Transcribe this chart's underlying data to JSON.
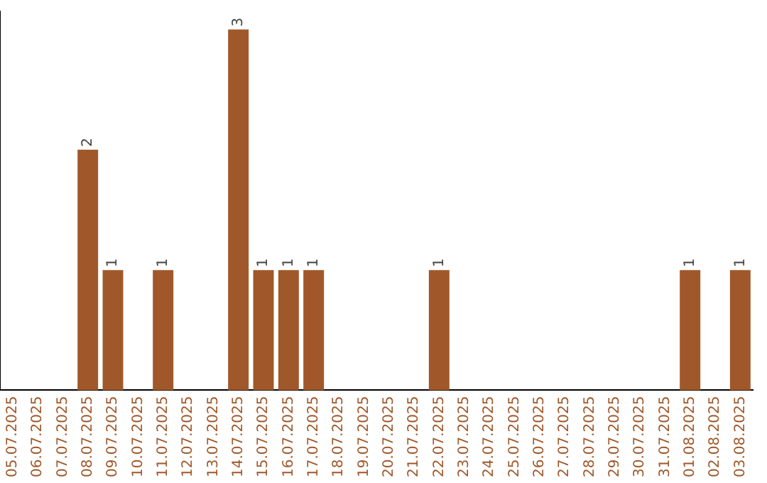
{
  "chart_data": {
    "type": "bar",
    "categories": [
      "05.07.2025",
      "06.07.2025",
      "07.07.2025",
      "08.07.2025",
      "09.07.2025",
      "10.07.2025",
      "11.07.2025",
      "12.07.2025",
      "13.07.2025",
      "14.07.2025",
      "15.07.2025",
      "16.07.2025",
      "17.07.2025",
      "18.07.2025",
      "19.07.2025",
      "20.07.2025",
      "21.07.2025",
      "22.07.2025",
      "23.07.2025",
      "24.07.2025",
      "25.07.2025",
      "26.07.2025",
      "27.07.2025",
      "28.07.2025",
      "29.07.2025",
      "30.07.2025",
      "31.07.2025",
      "01.08.2025",
      "02.08.2025",
      "03.08.2025"
    ],
    "values": [
      0,
      0,
      0,
      2,
      1,
      0,
      1,
      0,
      0,
      3,
      1,
      1,
      1,
      0,
      0,
      0,
      0,
      1,
      0,
      0,
      0,
      0,
      0,
      0,
      0,
      0,
      0,
      1,
      0,
      1
    ],
    "value_labels": [
      null,
      null,
      null,
      "2",
      "1",
      null,
      "1",
      null,
      null,
      "3",
      "1",
      "1",
      "1",
      null,
      null,
      null,
      null,
      "1",
      null,
      null,
      null,
      null,
      null,
      null,
      null,
      null,
      null,
      "1",
      null,
      "1"
    ],
    "color": "#a0582a",
    "ylim": [
      0,
      3.15
    ],
    "tick_labels": "x",
    "grid": false,
    "legend": false
  }
}
